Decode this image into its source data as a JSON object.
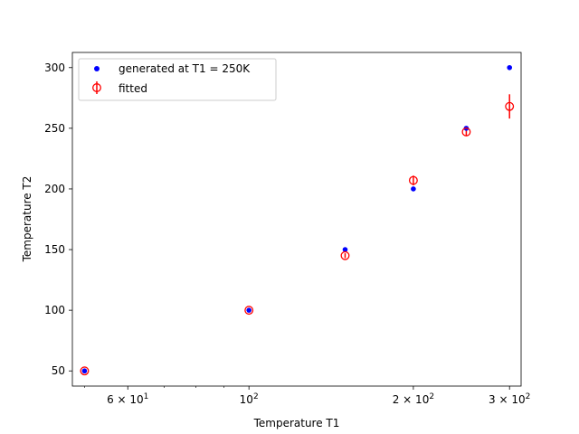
{
  "chart_data": {
    "type": "scatter",
    "xlabel": "Temperature T1",
    "ylabel": "Temperature T2",
    "x_scale": "log",
    "xlim": [
      47.5,
      315
    ],
    "ylim": [
      37.5,
      312.5
    ],
    "x_ticks": [
      {
        "value": 60,
        "mantissa": "6",
        "exponent": "1"
      },
      {
        "value": 100,
        "mantissa": "",
        "exponent": "2"
      },
      {
        "value": 200,
        "mantissa": "2",
        "exponent": "2"
      },
      {
        "value": 300,
        "mantissa": "3",
        "exponent": "2"
      }
    ],
    "x_base": "10",
    "x_times": "×",
    "y_ticks": [
      50,
      100,
      150,
      200,
      250,
      300
    ],
    "grid": false,
    "legend_position": "top-left",
    "series": [
      {
        "name": "generated at T1 = 250K",
        "marker": "filled-dot",
        "color": "#0000ff",
        "points": [
          {
            "x": 50,
            "y": 50
          },
          {
            "x": 100,
            "y": 100
          },
          {
            "x": 150,
            "y": 150
          },
          {
            "x": 200,
            "y": 200
          },
          {
            "x": 250,
            "y": 250
          },
          {
            "x": 300,
            "y": 300
          }
        ]
      },
      {
        "name": "fitted",
        "marker": "open-circle-errorbar",
        "color": "#ff0000",
        "points": [
          {
            "x": 50,
            "y": 50,
            "err": 1
          },
          {
            "x": 100,
            "y": 100,
            "err": 1
          },
          {
            "x": 150,
            "y": 145,
            "err": 2
          },
          {
            "x": 200,
            "y": 207,
            "err": 4
          },
          {
            "x": 250,
            "y": 247,
            "err": 3
          },
          {
            "x": 300,
            "y": 268,
            "err": 10
          }
        ]
      }
    ]
  }
}
